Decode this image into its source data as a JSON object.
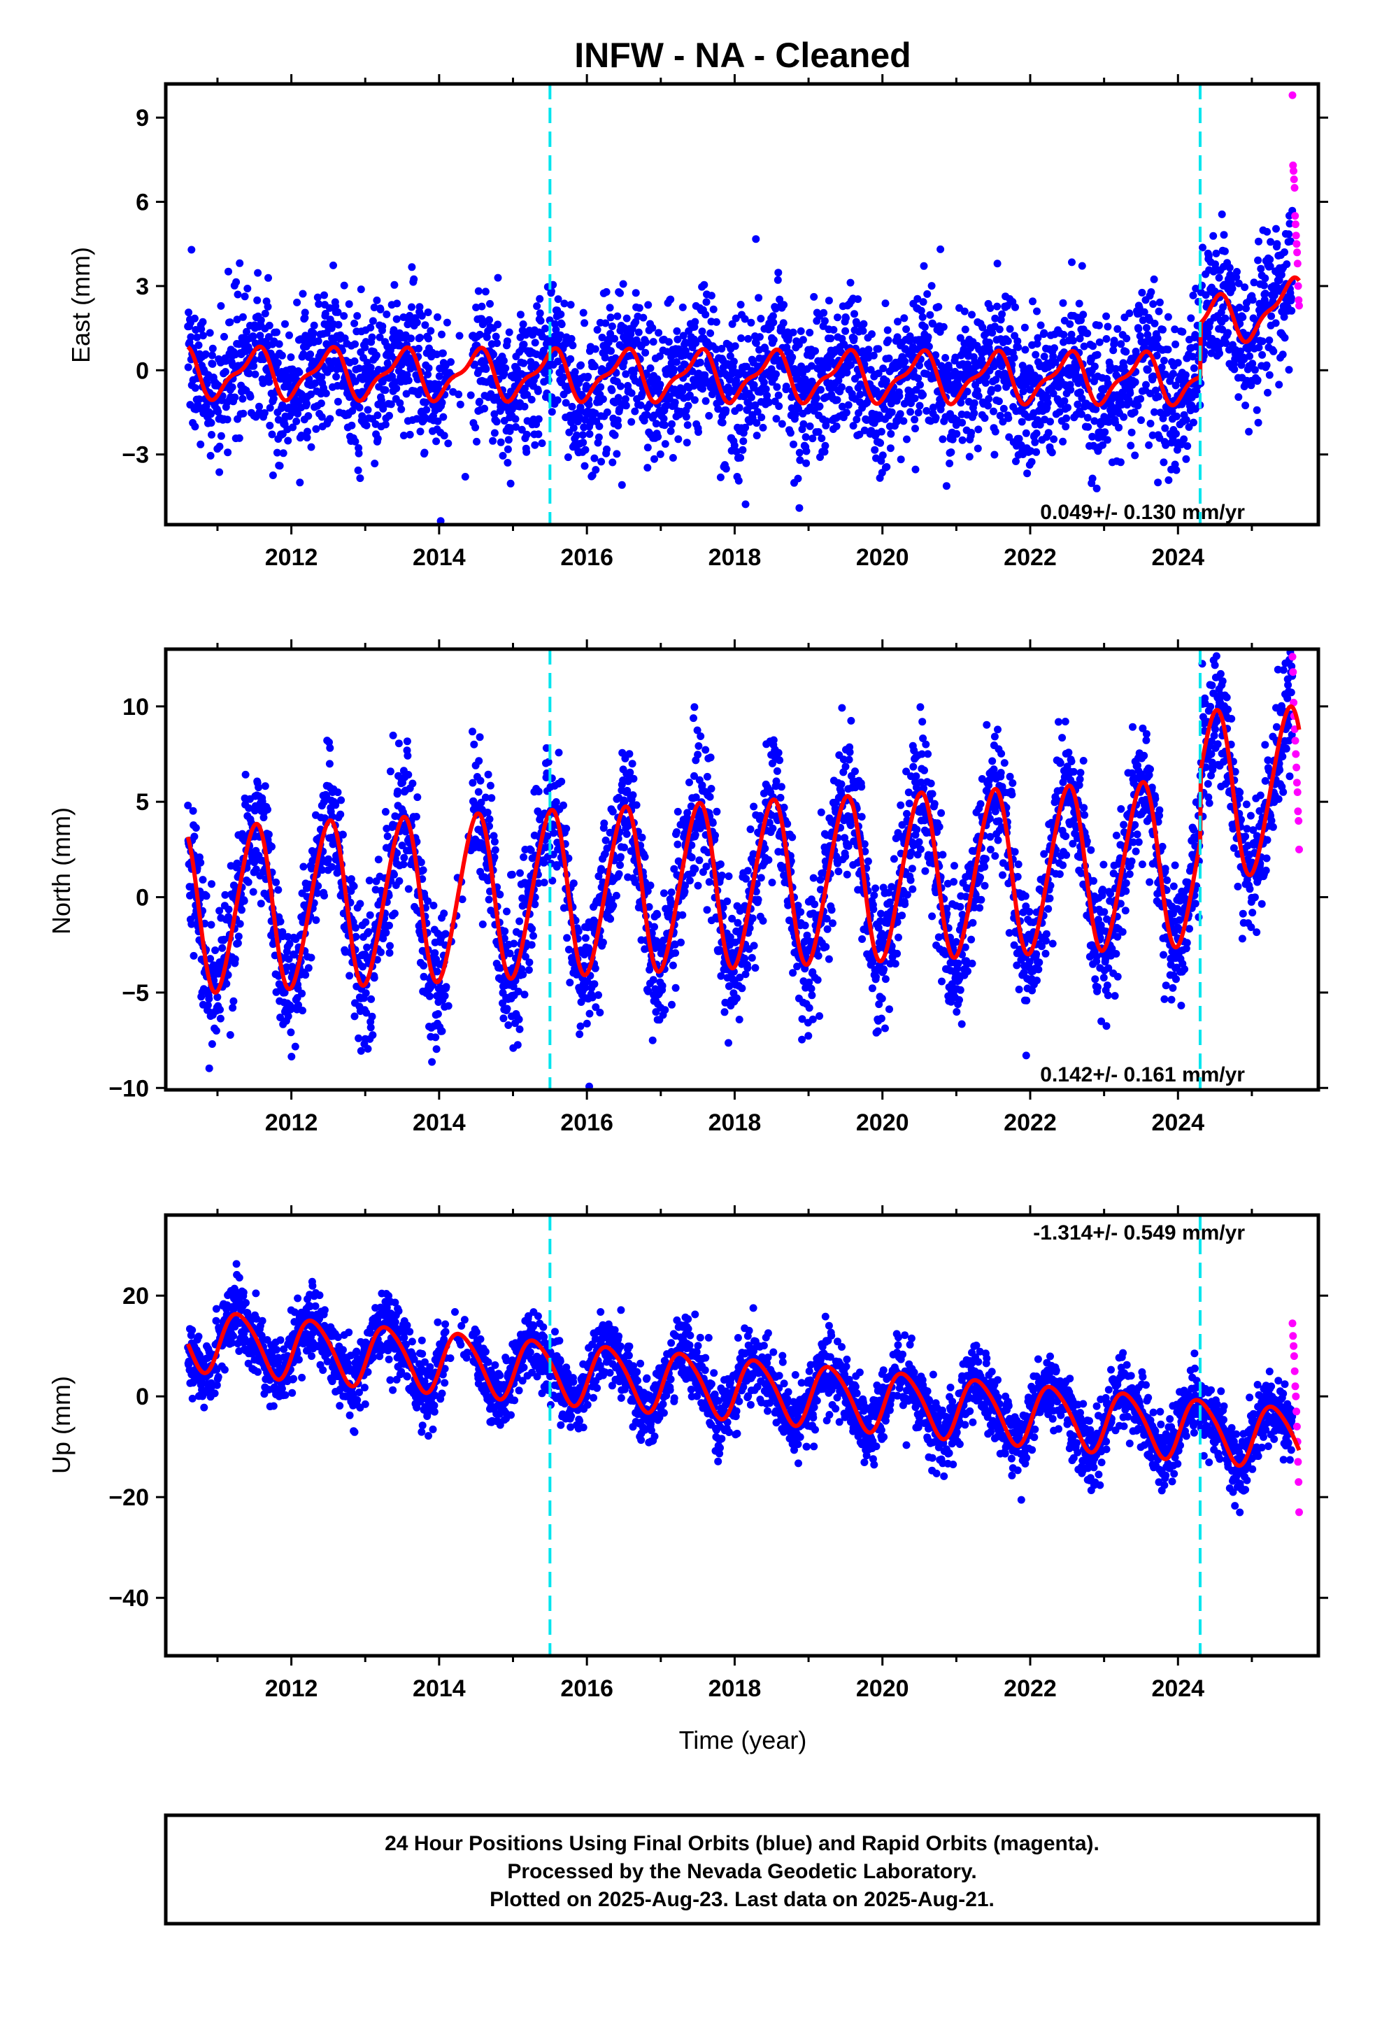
{
  "title": "INFW  - NA - Cleaned",
  "footer": {
    "lines": [
      "24 Hour Positions Using Final Orbits (blue) and Rapid Orbits (magenta).",
      "Processed by the Nevada Geodetic Laboratory.",
      "Plotted on 2025-Aug-23. Last data on 2025-Aug-21."
    ]
  },
  "colors": {
    "final_orbits": "#0000ff",
    "rapid_orbits": "#ff00ff",
    "model": "#ff0000",
    "equipment_change": "#00e5ee"
  },
  "chart_data": [
    {
      "type": "scatter",
      "ylabel": "East (mm)",
      "xlabel": "",
      "xlim": [
        2010.3,
        2025.9
      ],
      "ylim": [
        -5.5,
        10.2
      ],
      "yticks": [
        9,
        6,
        3,
        0,
        -3
      ],
      "ytick_labels": [
        "9",
        "6",
        "3",
        "0",
        "−3"
      ],
      "xticks": [
        "2012",
        "2014",
        "2016",
        "2018",
        "2020",
        "2022",
        "2024"
      ],
      "rate": "0.049+/- 0.130 mm/yr",
      "rate_position": "bottom-right",
      "vlines": [
        2015.5,
        2024.3
      ],
      "series": [
        {
          "role": "model",
          "model": {
            "trend": [
              [
                2010.6,
                -0.1
              ],
              [
                2024.3,
                -0.3
              ]
            ],
            "amp": 0.8,
            "semi": 0.3,
            "phase": 0.0,
            "steps": [
              [
                2024.3,
                1.9
              ]
            ],
            "trend2": 0.6,
            "growth": 0.0
          }
        },
        {
          "role": "final",
          "scatter": 1.3,
          "start": 2010.6,
          "end": 2025.55
        },
        {
          "role": "rapid",
          "start": 2025.55,
          "end": 2025.64,
          "y": [
            9.8,
            7.3,
            7.1,
            6.8,
            6.5,
            5.5,
            5.2,
            4.8,
            4.5,
            4.2,
            3.8,
            3.0,
            2.5,
            2.3
          ]
        }
      ]
    },
    {
      "type": "scatter",
      "ylabel": "North (mm)",
      "xlabel": "",
      "xlim": [
        2010.3,
        2025.9
      ],
      "ylim": [
        -10.1,
        13.0
      ],
      "yticks": [
        10,
        5,
        0,
        -5,
        -10
      ],
      "ytick_labels": [
        "10",
        "5",
        "0",
        "−5",
        "−10"
      ],
      "xticks": [
        "2012",
        "2014",
        "2016",
        "2018",
        "2020",
        "2022",
        "2024"
      ],
      "rate": "0.142+/- 0.161 mm/yr",
      "rate_position": "bottom-right",
      "vlines": [
        2015.5,
        2024.3
      ],
      "series": [
        {
          "role": "model",
          "model": {
            "trend": [
              [
                2010.6,
                -0.7
              ],
              [
                2024.3,
                1.8
              ]
            ],
            "amp": 4.3,
            "semi": 0.4,
            "phase": 0.0,
            "steps": [
              [
                2024.3,
                3.6
              ]
            ],
            "trend2": 0.0,
            "growth": 0.0
          }
        },
        {
          "role": "final",
          "scatter": 1.8,
          "start": 2010.6,
          "end": 2025.55
        },
        {
          "role": "rapid",
          "start": 2025.55,
          "end": 2025.64,
          "y": [
            12.6,
            11.8,
            10.2,
            9.5,
            8.8,
            8.2,
            7.5,
            6.8,
            6.0,
            5.5,
            4.5,
            4.0,
            2.5
          ]
        }
      ]
    },
    {
      "type": "scatter",
      "ylabel": "Up (mm)",
      "xlabel": "Time (year)",
      "xlim": [
        2010.3,
        2025.9
      ],
      "ylim": [
        -51.5,
        36.0
      ],
      "yticks": [
        20,
        0,
        -20,
        -40
      ],
      "ytick_labels": [
        "20",
        "0",
        "−20",
        "−40"
      ],
      "xticks": [
        "2012",
        "2014",
        "2016",
        "2018",
        "2020",
        "2022",
        "2024"
      ],
      "rate": "-1.314+/- 0.549 mm/yr",
      "rate_position": "top-right",
      "vlines": [
        2015.5,
        2024.3
      ],
      "series": [
        {
          "role": "model",
          "model": {
            "trend": [
              [
                2010.6,
                11.5
              ],
              [
                2024.3,
                -6.5
              ]
            ],
            "amp": 6.0,
            "semi": 0.8,
            "phase": 0.2,
            "steps": [],
            "trend2": 0.0,
            "growth": 0.0
          }
        },
        {
          "role": "final",
          "scatter": 3.5,
          "start": 2010.6,
          "end": 2025.55
        },
        {
          "role": "rapid",
          "start": 2025.55,
          "end": 2025.64,
          "y": [
            14.5,
            12.0,
            10.0,
            8.0,
            5.0,
            2.0,
            0.0,
            -3.0,
            -6.0,
            -9.0,
            -13.0,
            -17.0,
            -23.0
          ]
        }
      ]
    }
  ]
}
